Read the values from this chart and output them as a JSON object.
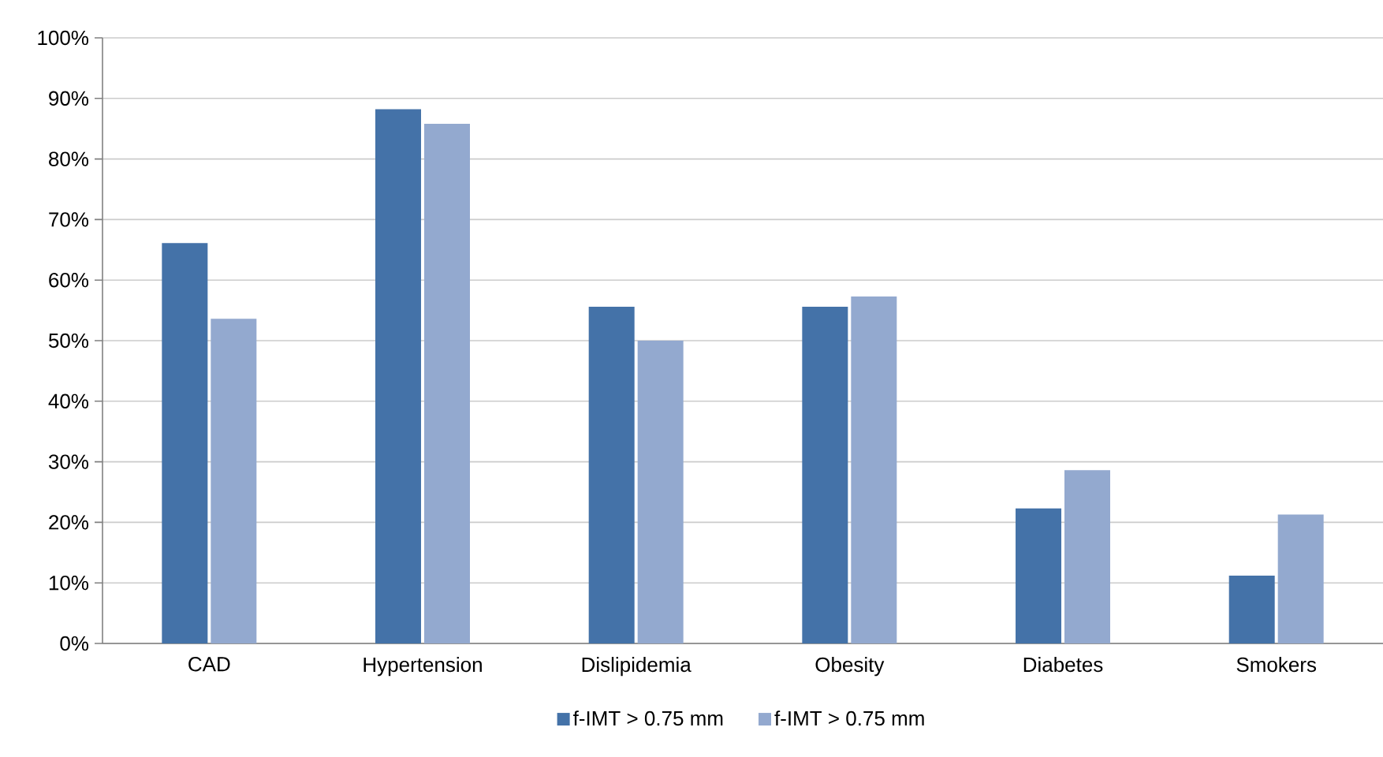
{
  "chart_data": {
    "type": "bar",
    "categories": [
      "CAD",
      "Hypertension",
      "Dislipidemia",
      "Obesity",
      "Diabetes",
      "Smokers"
    ],
    "series": [
      {
        "name": "f-IMT > 0.75 mm",
        "color": "#4472a8",
        "values": [
          66.1,
          88.2,
          55.6,
          55.6,
          22.3,
          11.2
        ]
      },
      {
        "name": "f-IMT > 0.75 mm",
        "color": "#93a9cf",
        "values": [
          53.6,
          85.8,
          50.0,
          57.3,
          28.6,
          21.3
        ]
      }
    ],
    "ylim": [
      0,
      100
    ],
    "yticks": [
      {
        "value": 0,
        "label": "0%"
      },
      {
        "value": 10,
        "label": "10%"
      },
      {
        "value": 20,
        "label": "20%"
      },
      {
        "value": 30,
        "label": "30%"
      },
      {
        "value": 40,
        "label": "40%"
      },
      {
        "value": 50,
        "label": "50%"
      },
      {
        "value": 60,
        "label": "60%"
      },
      {
        "value": 70,
        "label": "70%"
      },
      {
        "value": 80,
        "label": "80%"
      },
      {
        "value": 90,
        "label": "90%"
      },
      {
        "value": 100,
        "label": "100%"
      }
    ],
    "grid": "y",
    "legend": "bottom"
  }
}
